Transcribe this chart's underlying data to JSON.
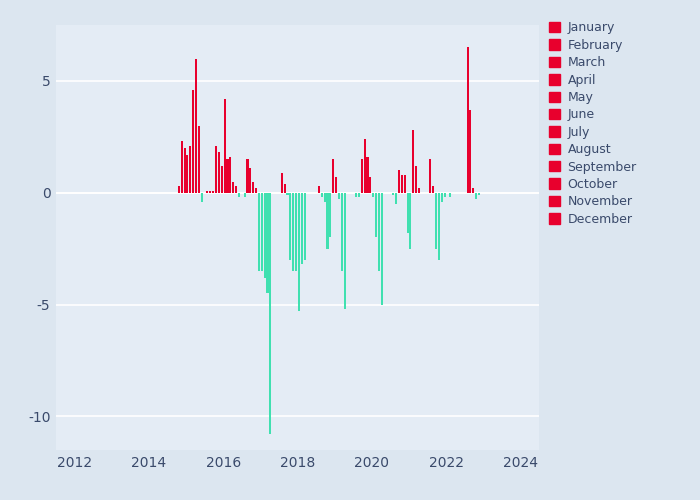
{
  "xlim": [
    2011.5,
    2024.5
  ],
  "ylim": [
    -11.5,
    7.5
  ],
  "xticks": [
    2012,
    2014,
    2016,
    2018,
    2020,
    2022,
    2024
  ],
  "yticks": [
    -10,
    -5,
    0,
    5
  ],
  "fig_bg_color": "#dce6f0",
  "plot_bg_color": "#e4ecf5",
  "pos_color": "#e8002d",
  "neg_color": "#40e0b0",
  "bar_width": 0.055,
  "months": [
    "January",
    "February",
    "March",
    "April",
    "May",
    "June",
    "July",
    "August",
    "September",
    "October",
    "November",
    "December"
  ],
  "data": [
    {
      "year": 2015,
      "month": 4,
      "value": 0.3
    },
    {
      "year": 2015,
      "month": 5,
      "value": 2.3
    },
    {
      "year": 2015,
      "month": 6,
      "value": 2.0
    },
    {
      "year": 2015,
      "month": 7,
      "value": 1.7
    },
    {
      "year": 2015,
      "month": 8,
      "value": 2.1
    },
    {
      "year": 2015,
      "month": 9,
      "value": 4.6
    },
    {
      "year": 2015,
      "month": 10,
      "value": 6.0
    },
    {
      "year": 2015,
      "month": 11,
      "value": 3.0
    },
    {
      "year": 2015,
      "month": 12,
      "value": -0.4
    },
    {
      "year": 2016,
      "month": 1,
      "value": 0.1
    },
    {
      "year": 2016,
      "month": 2,
      "value": 0.1
    },
    {
      "year": 2016,
      "month": 3,
      "value": 0.1
    },
    {
      "year": 2016,
      "month": 4,
      "value": 2.1
    },
    {
      "year": 2016,
      "month": 5,
      "value": 1.8
    },
    {
      "year": 2016,
      "month": 6,
      "value": 1.2
    },
    {
      "year": 2016,
      "month": 7,
      "value": 4.2
    },
    {
      "year": 2016,
      "month": 8,
      "value": 1.5
    },
    {
      "year": 2016,
      "month": 9,
      "value": 1.6
    },
    {
      "year": 2016,
      "month": 10,
      "value": 0.5
    },
    {
      "year": 2016,
      "month": 11,
      "value": 0.3
    },
    {
      "year": 2016,
      "month": 12,
      "value": -0.2
    },
    {
      "year": 2017,
      "month": 1,
      "value": -0.2
    },
    {
      "year": 2017,
      "month": 2,
      "value": 1.5
    },
    {
      "year": 2017,
      "month": 3,
      "value": 1.1
    },
    {
      "year": 2017,
      "month": 4,
      "value": 0.5
    },
    {
      "year": 2017,
      "month": 5,
      "value": 0.2
    },
    {
      "year": 2017,
      "month": 6,
      "value": -3.5
    },
    {
      "year": 2017,
      "month": 7,
      "value": -3.5
    },
    {
      "year": 2017,
      "month": 8,
      "value": -3.8
    },
    {
      "year": 2017,
      "month": 9,
      "value": -4.5
    },
    {
      "year": 2017,
      "month": 10,
      "value": -10.8
    },
    {
      "year": 2018,
      "month": 1,
      "value": 0.9
    },
    {
      "year": 2018,
      "month": 2,
      "value": 0.4
    },
    {
      "year": 2018,
      "month": 3,
      "value": -0.1
    },
    {
      "year": 2018,
      "month": 4,
      "value": -3.0
    },
    {
      "year": 2018,
      "month": 5,
      "value": -3.5
    },
    {
      "year": 2018,
      "month": 6,
      "value": -3.5
    },
    {
      "year": 2018,
      "month": 7,
      "value": -5.3
    },
    {
      "year": 2018,
      "month": 8,
      "value": -3.2
    },
    {
      "year": 2018,
      "month": 9,
      "value": -3.0
    },
    {
      "year": 2019,
      "month": 1,
      "value": 0.3
    },
    {
      "year": 2019,
      "month": 2,
      "value": -0.2
    },
    {
      "year": 2019,
      "month": 3,
      "value": -0.4
    },
    {
      "year": 2019,
      "month": 4,
      "value": -2.5
    },
    {
      "year": 2019,
      "month": 5,
      "value": -2.0
    },
    {
      "year": 2019,
      "month": 6,
      "value": 1.5
    },
    {
      "year": 2019,
      "month": 7,
      "value": 0.7
    },
    {
      "year": 2019,
      "month": 8,
      "value": -0.3
    },
    {
      "year": 2019,
      "month": 9,
      "value": -3.5
    },
    {
      "year": 2019,
      "month": 10,
      "value": -5.2
    },
    {
      "year": 2020,
      "month": 1,
      "value": -0.2
    },
    {
      "year": 2020,
      "month": 2,
      "value": -0.2
    },
    {
      "year": 2020,
      "month": 3,
      "value": 1.5
    },
    {
      "year": 2020,
      "month": 4,
      "value": 2.4
    },
    {
      "year": 2020,
      "month": 5,
      "value": 1.6
    },
    {
      "year": 2020,
      "month": 6,
      "value": 0.7
    },
    {
      "year": 2020,
      "month": 7,
      "value": -0.2
    },
    {
      "year": 2020,
      "month": 8,
      "value": -2.0
    },
    {
      "year": 2020,
      "month": 9,
      "value": -3.5
    },
    {
      "year": 2020,
      "month": 10,
      "value": -5.0
    },
    {
      "year": 2021,
      "month": 1,
      "value": -0.1
    },
    {
      "year": 2021,
      "month": 2,
      "value": -0.5
    },
    {
      "year": 2021,
      "month": 3,
      "value": 1.0
    },
    {
      "year": 2021,
      "month": 4,
      "value": 0.8
    },
    {
      "year": 2021,
      "month": 5,
      "value": 0.8
    },
    {
      "year": 2021,
      "month": 6,
      "value": -1.8
    },
    {
      "year": 2021,
      "month": 7,
      "value": -2.5
    },
    {
      "year": 2021,
      "month": 8,
      "value": 2.8
    },
    {
      "year": 2021,
      "month": 9,
      "value": 1.2
    },
    {
      "year": 2021,
      "month": 10,
      "value": 0.2
    },
    {
      "year": 2022,
      "month": 1,
      "value": 1.5
    },
    {
      "year": 2022,
      "month": 2,
      "value": 0.3
    },
    {
      "year": 2022,
      "month": 3,
      "value": -2.5
    },
    {
      "year": 2022,
      "month": 4,
      "value": -3.0
    },
    {
      "year": 2022,
      "month": 5,
      "value": -0.4
    },
    {
      "year": 2022,
      "month": 6,
      "value": -0.2
    },
    {
      "year": 2022,
      "month": 7,
      "value": 0.0
    },
    {
      "year": 2022,
      "month": 8,
      "value": -0.2
    },
    {
      "year": 2023,
      "month": 1,
      "value": 6.5
    },
    {
      "year": 2023,
      "month": 2,
      "value": 3.7
    },
    {
      "year": 2023,
      "month": 3,
      "value": 0.2
    },
    {
      "year": 2023,
      "month": 4,
      "value": -0.3
    },
    {
      "year": 2023,
      "month": 5,
      "value": -0.1
    }
  ]
}
